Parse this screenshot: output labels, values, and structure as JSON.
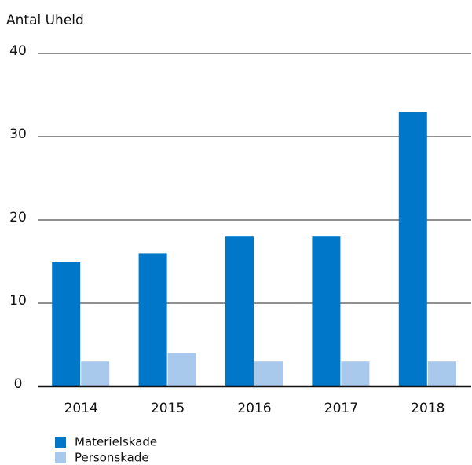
{
  "chart_data": {
    "type": "bar",
    "y_label": "Antal Uheld",
    "categories": [
      "2014",
      "2015",
      "2016",
      "2017",
      "2018"
    ],
    "series": [
      {
        "name": "Materielskade",
        "color": "#0077c8",
        "values": [
          15,
          16,
          18,
          18,
          33
        ]
      },
      {
        "name": "Personskade",
        "color": "#a8c8ec",
        "values": [
          3,
          4,
          3,
          3,
          3
        ]
      }
    ],
    "ylim": [
      0,
      40
    ],
    "yticks": [
      0,
      10,
      20,
      30,
      40
    ],
    "grid": true
  }
}
